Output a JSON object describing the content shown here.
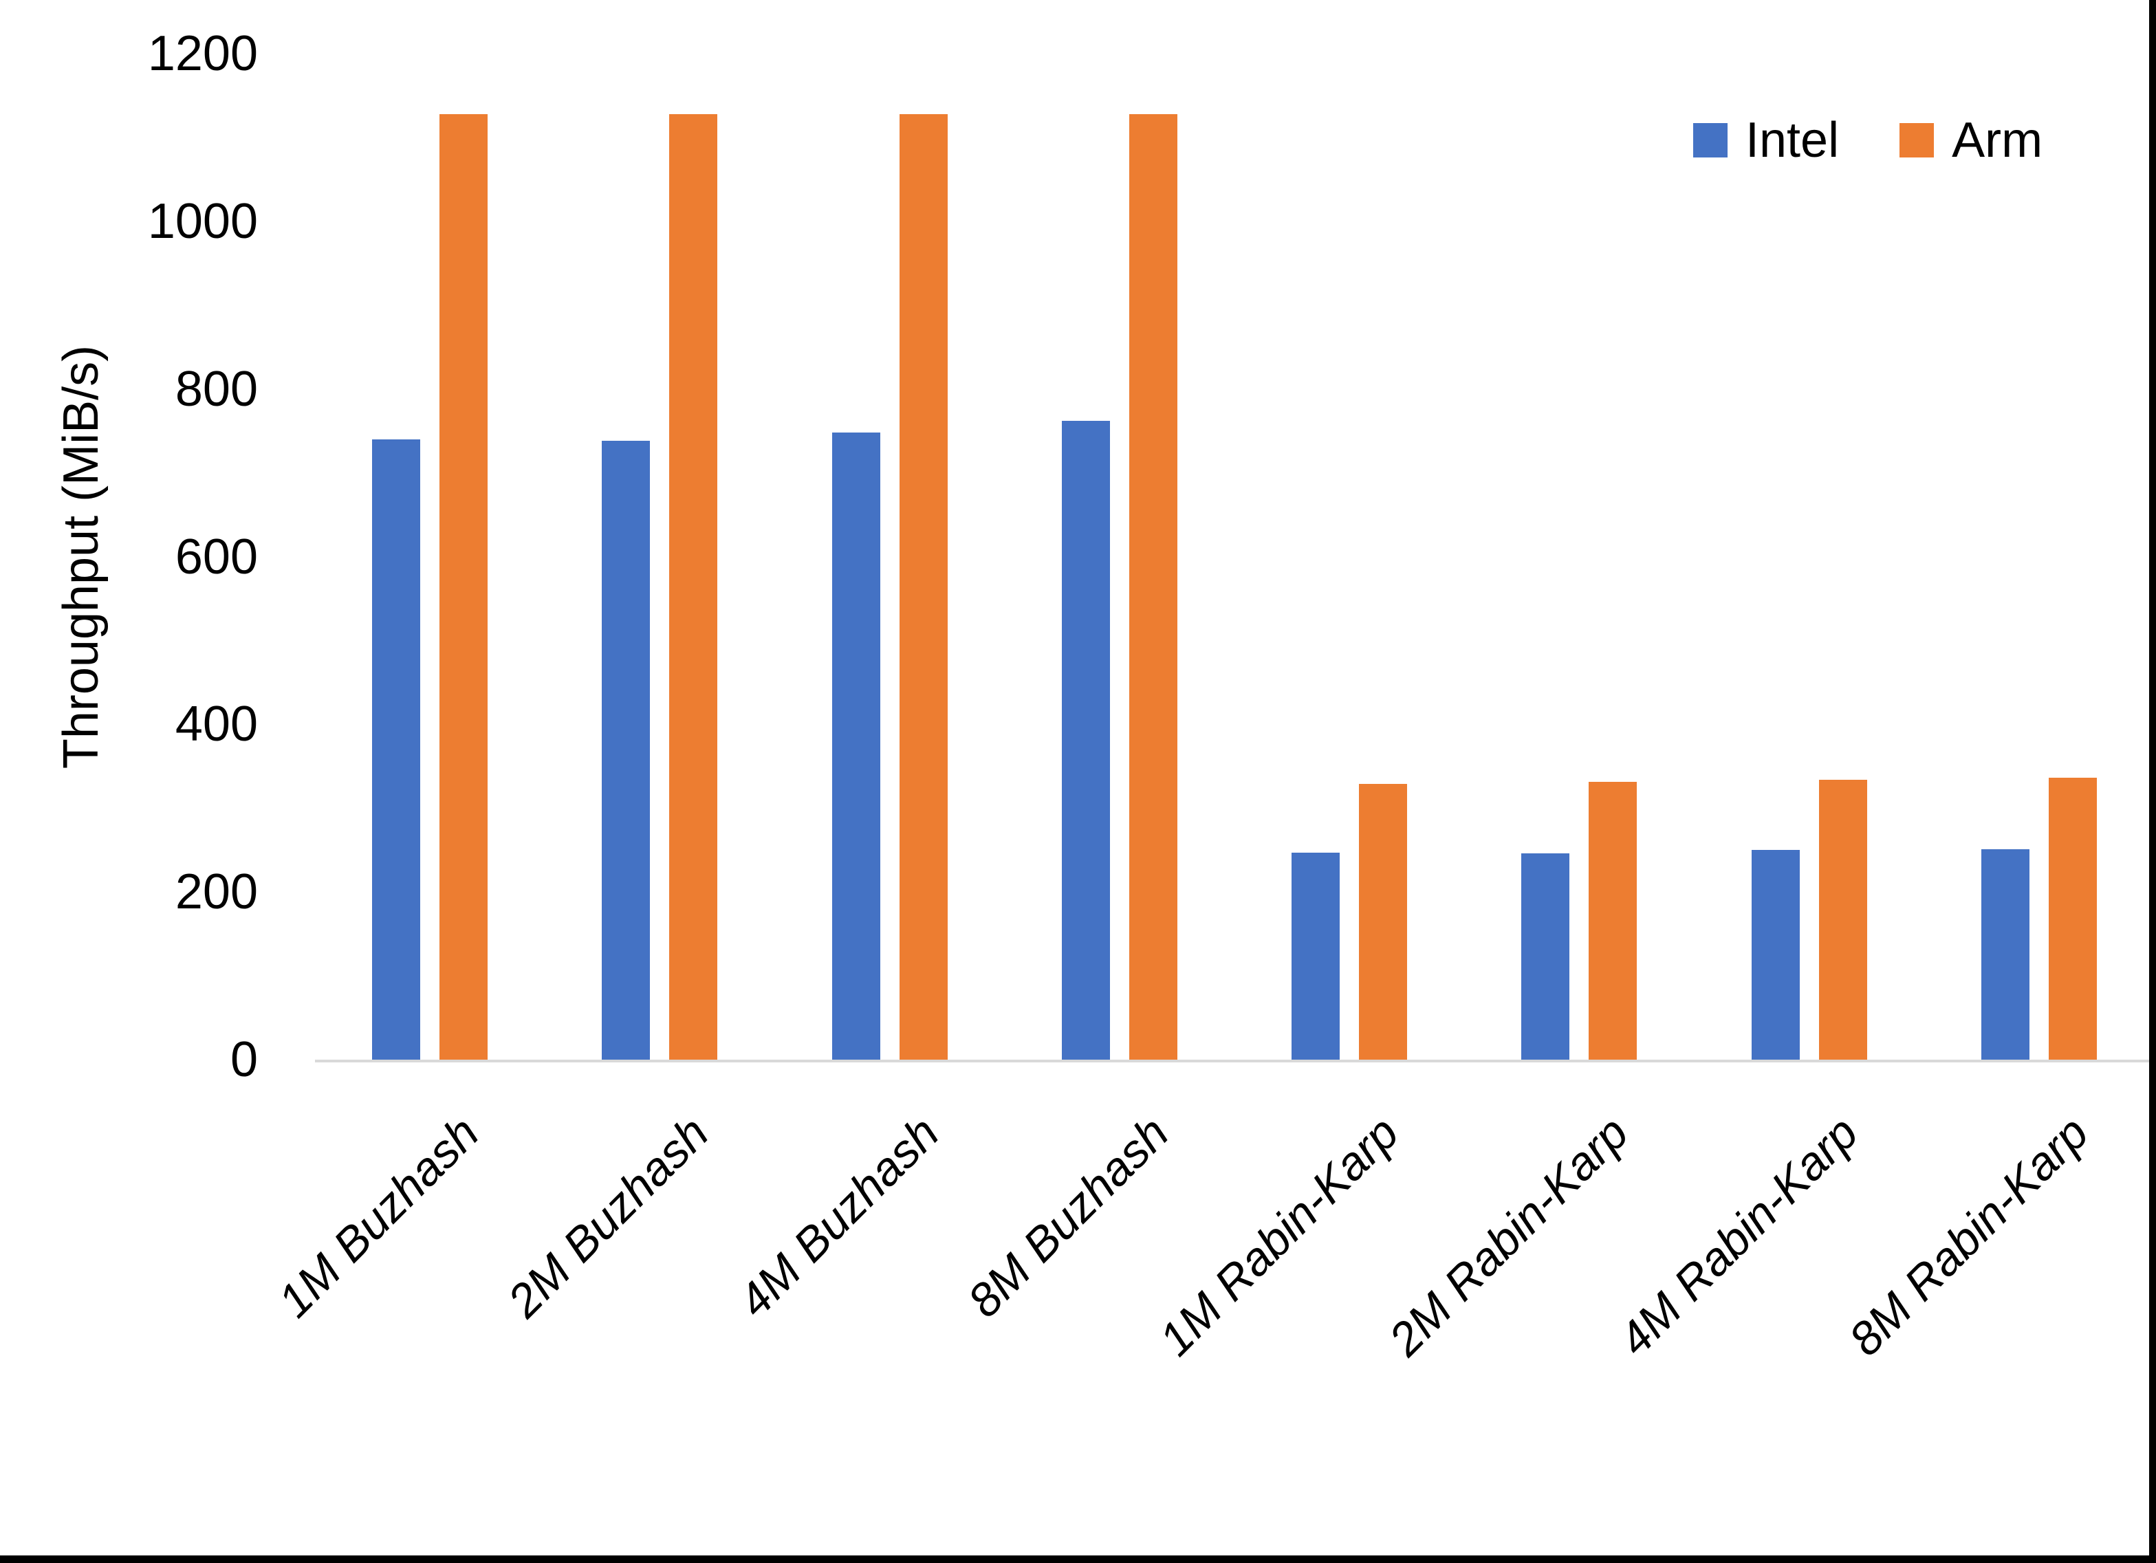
{
  "chart_data": {
    "type": "bar",
    "title": "",
    "categories": [
      "1M Buzhash",
      "2M Buzhash",
      "4M Buzhash",
      "8M Buzhash",
      "1M Rabin-Karp",
      "2M Rabin-Karp",
      "4M Rabin-Karp",
      "8M Rabin-Karp"
    ],
    "series": [
      {
        "name": "Intel",
        "color": "#4472C4",
        "values": [
          740,
          738,
          748,
          762,
          247,
          246,
          250,
          251
        ]
      },
      {
        "name": "Arm",
        "color": "#ED7D31",
        "values": [
          1128,
          1128,
          1128,
          1128,
          329,
          331,
          334,
          336
        ]
      }
    ],
    "xlabel": "",
    "ylabel": "Throughput (MiB/s)",
    "ylim": [
      0,
      1200
    ],
    "ytick_step": 200,
    "yticks": [
      "0",
      "200",
      "400",
      "600",
      "800",
      "1000",
      "1200"
    ],
    "grid": false,
    "legend_position": "top-right",
    "axis_line_color": "#D9D9D9",
    "label_style": "italic, rotated 45deg"
  }
}
